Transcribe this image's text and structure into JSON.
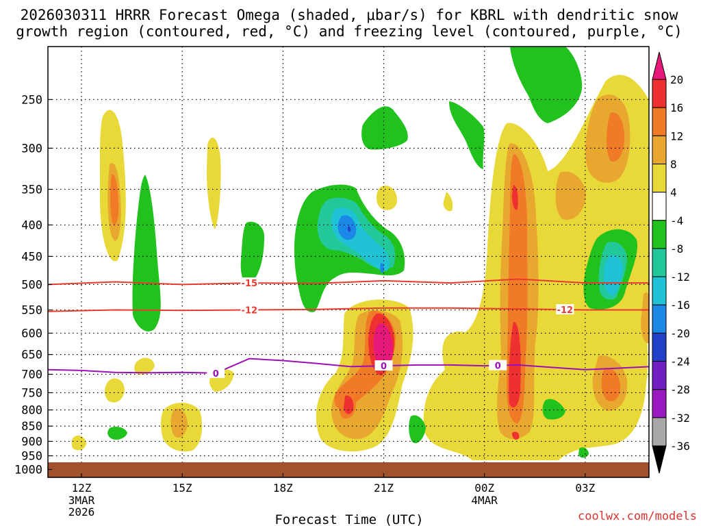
{
  "title": {
    "line1": "2026030311 HRRR Forecast Omega (shaded, μbar/s) for KBRL with dendritic snow",
    "line2": "growth region (contoured, red, °C) and freezing level (contoured, purple, °C)"
  },
  "credit": "coolwx.com/models",
  "chart_data": {
    "type": "heatmap",
    "title": "2026030311 HRRR Forecast Omega (shaded, μbar/s) for KBRL with dendritic snow growth region (contoured, red, °C) and freezing level (contoured, purple, °C)",
    "xlabel": "Forecast Time (UTC)",
    "ylabel": "",
    "x_range_hours": [
      11,
      28.9
    ],
    "ylim_hpa": [
      205,
      1030
    ],
    "y_ticks": [
      250,
      300,
      350,
      400,
      450,
      500,
      550,
      600,
      650,
      700,
      750,
      800,
      850,
      900,
      950,
      1000
    ],
    "x_ticks": [
      {
        "hour": 12,
        "label": "12Z",
        "sub": [
          "3MAR",
          "2026"
        ]
      },
      {
        "hour": 15,
        "label": "15Z",
        "sub": []
      },
      {
        "hour": 18,
        "label": "18Z",
        "sub": []
      },
      {
        "hour": 21,
        "label": "21Z",
        "sub": []
      },
      {
        "hour": 24,
        "label": "00Z",
        "sub": [
          "4MAR"
        ]
      },
      {
        "hour": 27,
        "label": "03Z",
        "sub": []
      }
    ],
    "grid": true,
    "colorbar": {
      "levels": [
        -36,
        -32,
        -28,
        -24,
        -20,
        -16,
        -12,
        -8,
        -4,
        4,
        8,
        12,
        16,
        20
      ],
      "labels": [
        "20",
        "16",
        "12",
        "8",
        "4",
        "-4",
        "-8",
        "-12",
        "-16",
        "-20",
        "-24",
        "-28",
        "-32",
        "-36"
      ],
      "colors": {
        "gt20": "#e8177a",
        "16_20": "#ee3030",
        "12_16": "#f07a25",
        "8_12": "#e8a830",
        "4_8": "#e8d838",
        "neg4_4": "#ffffff",
        "neg8_neg4": "#22c21e",
        "neg12_neg8": "#22c79a",
        "neg16_neg12": "#20c2d5",
        "neg20_neg16": "#1b88e8",
        "neg24_neg20": "#2040c8",
        "neg28_neg24": "#7020c0",
        "neg32_neg28": "#9a18c0",
        "neg36_neg32": "#a8a8a8",
        "lt_neg36": "#000000"
      }
    },
    "series": [
      {
        "name": "dendritic -15C isotherm",
        "label": "-15",
        "color": "#e83a2e",
        "x": [
          11,
          13,
          15,
          17,
          19,
          21,
          23,
          25,
          27,
          29
        ],
        "y": [
          500,
          495,
          500,
          497,
          498,
          493,
          497,
          490,
          497,
          497
        ]
      },
      {
        "name": "dendritic -12C isotherm",
        "label": "-12",
        "color": "#e83a2e",
        "x": [
          11,
          13,
          15,
          17,
          19,
          21,
          23,
          25,
          27,
          29
        ],
        "y": [
          553,
          550,
          551,
          550,
          549,
          546,
          546,
          548,
          550,
          550
        ]
      },
      {
        "name": "freezing level 0C",
        "label": "0",
        "color": "#9a10b8",
        "x": [
          11,
          12,
          13,
          14,
          15,
          16,
          17,
          18,
          19,
          20,
          21,
          22,
          23,
          24,
          25,
          26,
          27,
          28,
          29
        ],
        "y": [
          688,
          690,
          695,
          696,
          695,
          697,
          660,
          665,
          672,
          680,
          678,
          676,
          676,
          678,
          676,
          682,
          688,
          684,
          680
        ]
      }
    ],
    "omega_regions": [
      {
        "sign": "positive",
        "peak_ubar_s": 20,
        "hour": 21,
        "hpa": 620
      },
      {
        "sign": "positive",
        "peak_ubar_s": 16,
        "hour": 25,
        "hpa": 730
      },
      {
        "sign": "positive",
        "peak_ubar_s": 12,
        "hour": 27.8,
        "hpa": 300
      },
      {
        "sign": "negative",
        "peak_ubar_s": -20,
        "hour": 19.9,
        "hpa": 410
      },
      {
        "sign": "negative",
        "peak_ubar_s": -12,
        "hour": 27.9,
        "hpa": 470
      },
      {
        "sign": "negative",
        "peak_ubar_s": -8,
        "hour": 25.9,
        "hpa": 230
      }
    ]
  }
}
